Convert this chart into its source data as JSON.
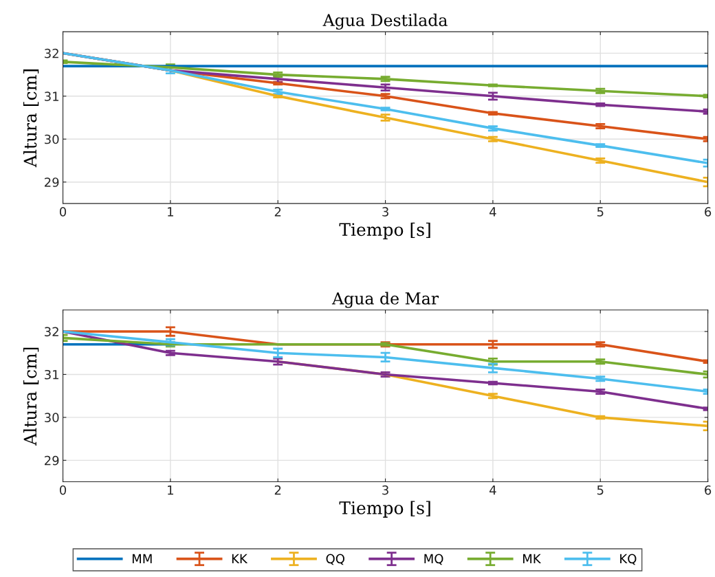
{
  "chart_data": [
    {
      "type": "line",
      "title": "Agua Destilada",
      "xlabel": "Tiempo [s]",
      "ylabel": "Altura [cm]",
      "x": [
        0,
        1,
        2,
        3,
        4,
        5,
        6
      ],
      "xlim": [
        0,
        6
      ],
      "xticks": [
        0,
        1,
        2,
        3,
        4,
        5,
        6
      ],
      "ylim": [
        28.5,
        32.5
      ],
      "yticks": [
        29,
        30,
        31,
        32
      ],
      "grid": true,
      "legend": "bottom",
      "marker": "none",
      "line_style": "solid",
      "series": [
        {
          "name": "MM",
          "color": "#0072bd",
          "values": [
            31.7,
            31.7,
            31.7,
            31.7,
            31.7,
            31.7,
            31.7
          ]
        },
        {
          "name": "KK",
          "color": "#d95319",
          "values": [
            32.0,
            31.6,
            31.3,
            31.0,
            30.6,
            30.3,
            30.0
          ],
          "errors": [
            null,
            null,
            0.03,
            0.05,
            0.03,
            0.05,
            0.05
          ]
        },
        {
          "name": "QQ",
          "color": "#edb120",
          "values": [
            32.0,
            31.6,
            31.0,
            30.5,
            30.0,
            29.5,
            29.0
          ],
          "errors": [
            null,
            null,
            0.03,
            0.07,
            0.05,
            0.05,
            0.1
          ]
        },
        {
          "name": "MQ",
          "color": "#7e2f8e",
          "values": [
            32.0,
            31.6,
            31.4,
            31.2,
            31.0,
            30.8,
            30.64
          ],
          "errors": [
            null,
            null,
            0.08,
            0.07,
            0.08,
            0.03,
            0.05
          ]
        },
        {
          "name": "MK",
          "color": "#77ac30",
          "values": [
            31.8,
            31.67,
            31.5,
            31.4,
            31.25,
            31.12,
            31.0
          ],
          "errors": [
            0.03,
            0.07,
            0.05,
            0.05,
            0.02,
            0.05,
            0.03
          ]
        },
        {
          "name": "KQ",
          "color": "#4dbeee",
          "values": [
            32.0,
            31.6,
            31.1,
            30.7,
            30.25,
            29.85,
            29.44
          ],
          "errors": [
            null,
            0.07,
            0.05,
            0.03,
            0.05,
            0.03,
            0.08
          ]
        }
      ]
    },
    {
      "type": "line",
      "title": "Agua de Mar",
      "xlabel": "Tiempo [s]",
      "ylabel": "Altura [cm]",
      "x": [
        0,
        1,
        2,
        3,
        4,
        5,
        6
      ],
      "xlim": [
        0,
        6
      ],
      "xticks": [
        0,
        1,
        2,
        3,
        4,
        5,
        6
      ],
      "ylim": [
        28.5,
        32.5
      ],
      "yticks": [
        29,
        30,
        31,
        32
      ],
      "grid": true,
      "marker": "none",
      "line_style": "solid",
      "series": [
        {
          "name": "MM",
          "color": "#0072bd",
          "values": [
            31.7,
            31.7,
            null,
            null,
            null,
            null,
            null
          ]
        },
        {
          "name": "KK",
          "color": "#d95319",
          "values": [
            32.0,
            32.0,
            31.7,
            31.7,
            31.7,
            31.7,
            31.3
          ],
          "errors": [
            null,
            0.1,
            null,
            0.05,
            0.08,
            0.05,
            0.03
          ]
        },
        {
          "name": "QQ",
          "color": "#edb120",
          "values": [
            null,
            null,
            31.3,
            31.0,
            30.5,
            30.0,
            29.8
          ],
          "errors": [
            null,
            null,
            null,
            null,
            0.05,
            0.03,
            0.1
          ]
        },
        {
          "name": "MQ",
          "color": "#7e2f8e",
          "values": [
            32.0,
            31.5,
            31.3,
            31.0,
            30.8,
            30.6,
            30.2
          ],
          "errors": [
            null,
            0.05,
            0.07,
            0.05,
            0.03,
            0.05,
            0.03
          ]
        },
        {
          "name": "MK",
          "color": "#77ac30",
          "values": [
            31.85,
            31.7,
            31.7,
            31.7,
            31.3,
            31.3,
            31.0
          ],
          "errors": [
            0.07,
            0.05,
            null,
            0.03,
            0.07,
            0.05,
            0.07
          ]
        },
        {
          "name": "KQ",
          "color": "#4dbeee",
          "values": [
            32.0,
            31.75,
            31.5,
            31.4,
            31.15,
            30.9,
            30.6
          ],
          "errors": [
            null,
            0.07,
            0.1,
            0.1,
            0.1,
            0.05,
            0.05
          ]
        }
      ]
    }
  ]
}
